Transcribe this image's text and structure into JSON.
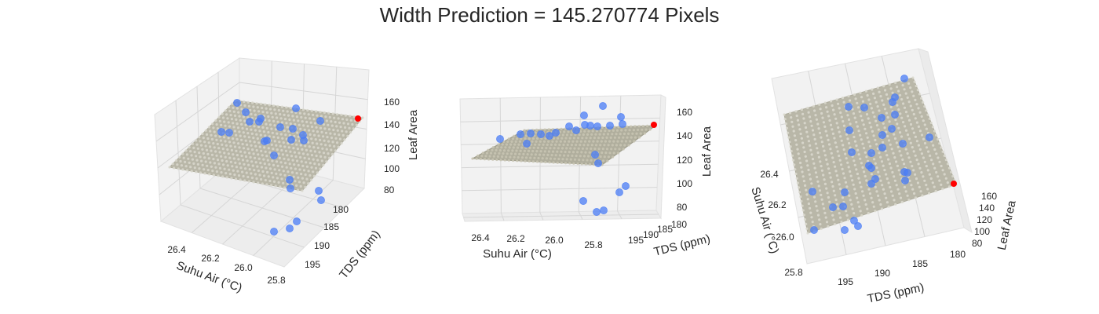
{
  "figure": {
    "title": "Width Prediction = 145.270774 Pixels"
  },
  "colors": {
    "points": "#4a7cf5",
    "prediction": "#ff0000",
    "surface": "#b9b7a8",
    "pane": "#f2f2f2",
    "grid": "#d6d6d6"
  },
  "chart_data": [
    {
      "type": "scatter",
      "view": "default",
      "title": "",
      "xlabel": "Suhu Air (°C)",
      "ylabel": "TDS (ppm)",
      "zlabel": "Leaf Area",
      "xlim": [
        25.75,
        26.5
      ],
      "ylim": [
        177,
        198
      ],
      "zlim": [
        75,
        165
      ],
      "xticks": [
        "26.4",
        "26.2",
        "26.0",
        "25.8"
      ],
      "yticks": [
        "180",
        "185",
        "190",
        "195"
      ],
      "zticks": [
        "80",
        "100",
        "120",
        "140",
        "160"
      ],
      "grid": true,
      "surface": {
        "description": "fitted regression plane",
        "z_range": [
          100,
          145
        ]
      },
      "prediction_point": {
        "x": 25.82,
        "y": 179.5,
        "z": 145.27
      },
      "series": [
        {
          "values": [
            {
              "x": 26.35,
              "y": 181,
              "z": 150
            },
            {
              "x": 26.3,
              "y": 183,
              "z": 145
            },
            {
              "x": 26.2,
              "y": 182,
              "z": 142
            },
            {
              "x": 26.25,
              "y": 186,
              "z": 138
            },
            {
              "x": 26.18,
              "y": 184,
              "z": 140
            },
            {
              "x": 26.1,
              "y": 183,
              "z": 147
            },
            {
              "x": 26.05,
              "y": 185,
              "z": 146
            },
            {
              "x": 26.0,
              "y": 182,
              "z": 150
            },
            {
              "x": 25.95,
              "y": 184,
              "z": 143
            },
            {
              "x": 25.9,
              "y": 181,
              "z": 148
            },
            {
              "x": 26.3,
              "y": 190,
              "z": 135
            },
            {
              "x": 26.15,
              "y": 188,
              "z": 136
            },
            {
              "x": 26.05,
              "y": 189,
              "z": 128
            },
            {
              "x": 25.98,
              "y": 187,
              "z": 133
            },
            {
              "x": 26.1,
              "y": 191,
              "z": 126
            },
            {
              "x": 25.92,
              "y": 190,
              "z": 120
            },
            {
              "x": 26.0,
              "y": 193,
              "z": 110
            },
            {
              "x": 25.95,
              "y": 195,
              "z": 95
            },
            {
              "x": 25.88,
              "y": 193,
              "z": 90
            },
            {
              "x": 25.85,
              "y": 192,
              "z": 86
            },
            {
              "x": 25.9,
              "y": 196,
              "z": 80
            },
            {
              "x": 25.85,
              "y": 197,
              "z": 82
            },
            {
              "x": 26.2,
              "y": 186,
              "z": 130
            },
            {
              "x": 26.1,
              "y": 187,
              "z": 139
            }
          ]
        }
      ]
    },
    {
      "type": "scatter",
      "view": "low-elevation",
      "title": "",
      "xlabel": "Suhu Air (°C)",
      "ylabel": "TDS (ppm)",
      "zlabel": "Leaf Area",
      "xticks": [
        "26.4",
        "26.2",
        "26.0",
        "25.8"
      ],
      "yticks": [
        "195",
        "190",
        "185",
        "180"
      ],
      "zticks": [
        "80",
        "100",
        "120",
        "140",
        "160"
      ],
      "grid": true
    },
    {
      "type": "scatter",
      "view": "top-down",
      "title": "",
      "xlabel": "Suhu Air (°C)",
      "ylabel": "TDS (ppm)",
      "zlabel": "Leaf Area",
      "xticks": [
        "26.4",
        "26.2",
        "26.0",
        "25.8"
      ],
      "yticks": [
        "195",
        "190",
        "185",
        "180"
      ],
      "zticks": [
        "80",
        "100",
        "120",
        "140",
        "160"
      ],
      "grid": true
    }
  ]
}
